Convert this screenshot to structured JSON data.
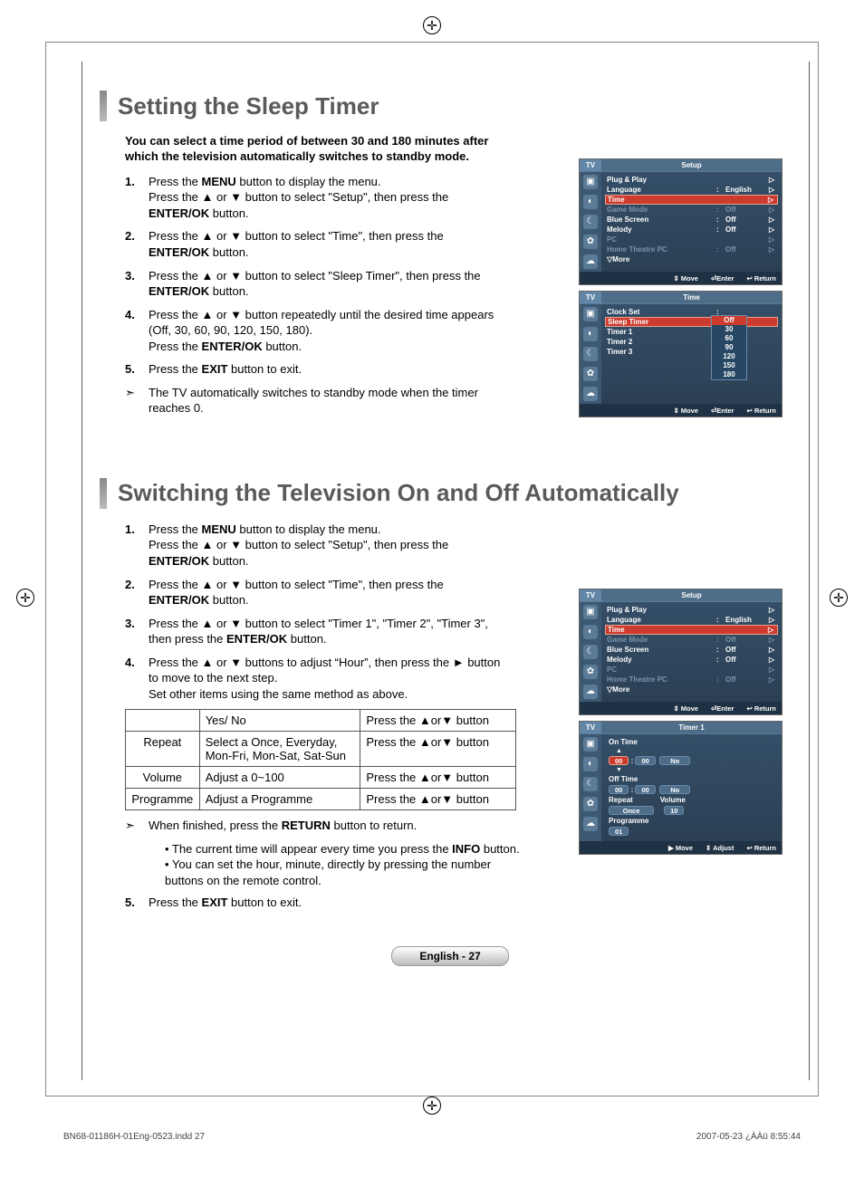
{
  "section1": {
    "title": "Setting the Sleep Timer",
    "intro": "You can select a time period of between 30 and 180 minutes after which the television automatically switches to standby mode.",
    "steps": [
      {
        "num": "1.",
        "html": "Press the <b>MENU</b> button to display the menu.<br>Press the ▲ or ▼ button to select \"Setup\", then press the <b>ENTER/OK</b> button."
      },
      {
        "num": "2.",
        "html": "Press the ▲ or ▼ button to select \"Time\", then press the <b>ENTER/OK</b> button."
      },
      {
        "num": "3.",
        "html": "Press the ▲ or ▼ button to select \"Sleep Timer\", then press the <b>ENTER/OK</b> button."
      },
      {
        "num": "4.",
        "html": "Press the ▲ or ▼ button repeatedly until the desired time appears (Off, 30, 60, 90, 120, 150, 180).<br>Press the <b>ENTER/OK</b> button."
      },
      {
        "num": "5.",
        "html": "Press the <b>EXIT</b> button to exit."
      },
      {
        "arrow": "➣",
        "html": "The TV automatically switches to standby mode when the timer reaches 0."
      }
    ]
  },
  "section2": {
    "title": "Switching the Television On and Off Automatically",
    "steps": [
      {
        "num": "1.",
        "html": "Press the <b>MENU</b> button to display the menu.<br>Press the ▲ or ▼ button to select \"Setup\", then press the <b>ENTER/OK</b> button."
      },
      {
        "num": "2.",
        "html": "Press the ▲ or ▼ button to select \"Time\", then press the <b>ENTER/OK</b> button."
      },
      {
        "num": "3.",
        "html": "Press the ▲ or ▼ button to select \"Timer 1\", \"Timer 2\", \"Timer 3\", then press the <b>ENTER/OK</b> button."
      },
      {
        "num": "4.",
        "html": "Press the ▲ or ▼ buttons to adjust “Hour”, then press the ► button to move to the next step.<br>Set other items using the same method as above."
      }
    ],
    "table": {
      "rows": [
        [
          "",
          "Yes/ No",
          "Press the ▲or▼ button"
        ],
        [
          "Repeat",
          "Select a Once, Everyday, Mon-Fri, Mon-Sat, Sat-Sun",
          "Press the ▲or▼ button"
        ],
        [
          "Volume",
          "Adjust a 0~100",
          "Press the ▲or▼ button"
        ],
        [
          "Programme",
          "Adjust a Programme",
          "Press the ▲or▼ button"
        ]
      ]
    },
    "after_table_arrow": "When finished, press the <b>RETURN</b> button to return.",
    "bullets": [
      "The current time will appear every time you press the <b>INFO</b> button.",
      "You can set the hour, minute, directly by pressing the number buttons on the remote control."
    ],
    "step5": {
      "num": "5.",
      "html": "Press the <b>EXIT</b> button to exit."
    }
  },
  "osd_setup": {
    "tv": "TV",
    "title": "Setup",
    "rows": [
      {
        "k": "Plug & Play",
        "c": "",
        "v": "",
        "arr": "▷",
        "dim": false
      },
      {
        "k": "Language",
        "c": ":",
        "v": "English",
        "arr": "▷",
        "dim": false
      },
      {
        "k": "Time",
        "c": "",
        "v": "",
        "arr": "▷",
        "dim": false,
        "hl": true
      },
      {
        "k": "Game Mode",
        "c": ":",
        "v": "Off",
        "arr": "▷",
        "dim": true
      },
      {
        "k": "Blue Screen",
        "c": ":",
        "v": "Off",
        "arr": "▷",
        "dim": false
      },
      {
        "k": "Melody",
        "c": ":",
        "v": "Off",
        "arr": "▷",
        "dim": false
      },
      {
        "k": "PC",
        "c": "",
        "v": "",
        "arr": "▷",
        "dim": true
      },
      {
        "k": "Home Theatre PC",
        "c": ":",
        "v": "Off",
        "arr": "▷",
        "dim": true
      },
      {
        "k": "▽More",
        "c": "",
        "v": "",
        "arr": "",
        "dim": false
      }
    ],
    "foot": [
      "⇕ Move",
      "⏎Enter",
      "↩ Return"
    ]
  },
  "osd_time": {
    "tv": "TV",
    "title": "Time",
    "rows": [
      {
        "k": "Clock Set",
        "c": ":",
        "v": "",
        "arr": "",
        "dim": false
      },
      {
        "k": "Sleep Timer",
        "c": ":",
        "v": "",
        "arr": "",
        "dim": false,
        "hl": true
      },
      {
        "k": "Timer 1",
        "c": ":",
        "v": "",
        "arr": "",
        "dim": false
      },
      {
        "k": "Timer 2",
        "c": ":",
        "v": "",
        "arr": "",
        "dim": false
      },
      {
        "k": "Timer 3",
        "c": ":",
        "v": "",
        "arr": "",
        "dim": false
      }
    ],
    "dropdown": {
      "items": [
        "Off",
        "30",
        "60",
        "90",
        "120",
        "150",
        "180"
      ],
      "selected": 0
    },
    "foot": [
      "⇕ Move",
      "⏎Enter",
      "↩ Return"
    ]
  },
  "osd_timer1": {
    "tv": "TV",
    "title": "Timer 1",
    "on_time_label": "On Time",
    "on_h": "00",
    "on_m": "00",
    "on_state": "No",
    "off_time_label": "Off Time",
    "off_h": "00",
    "off_m": "00",
    "off_state": "No",
    "repeat_label": "Repeat",
    "repeat_val": "Once",
    "volume_label": "Volume",
    "volume_val": "10",
    "programme_label": "Programme",
    "programme_val": "01",
    "foot": [
      "▶ Move",
      "⇕ Adjust",
      "↩ Return"
    ]
  },
  "page_label": "English - 27",
  "foot_left": "BN68-01186H-01Eng-0523.indd   27",
  "foot_right": "2007-05-23   ¿ÀÀü 8:55:44",
  "colors": {
    "panel_bg": "#2a3e52",
    "panel_hl": "#cd3b2f",
    "panel_border": "#6a8aaa",
    "title_grey": "#5a5a5a"
  }
}
